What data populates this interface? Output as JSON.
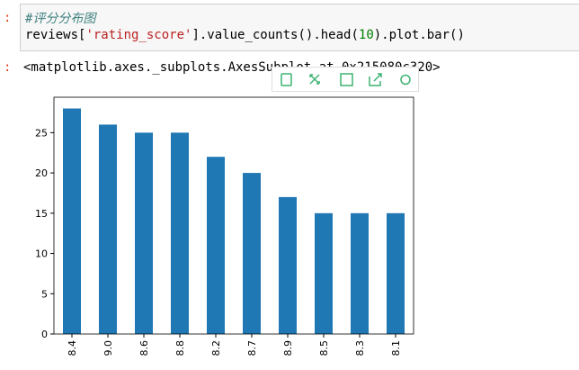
{
  "prompt": ":",
  "cell": {
    "comment": "#评分分布图",
    "code": [
      "reviews[",
      "'rating_score'",
      "].value_counts().head(",
      "10",
      ").plot.bar()"
    ]
  },
  "output": "<matplotlib.axes._subplots.AxesSubplot at 0x215080c320>",
  "chart_data": {
    "type": "bar",
    "categories": [
      "8.4",
      "9.0",
      "8.6",
      "8.8",
      "8.2",
      "8.7",
      "8.9",
      "8.5",
      "8.3",
      "8.1"
    ],
    "values": [
      28,
      26,
      25,
      25,
      22,
      20,
      17,
      15,
      15,
      15
    ],
    "color": "#1f77b4",
    "ylim": [
      0,
      29.4
    ],
    "yticks": [
      0,
      5,
      10,
      15,
      20,
      25
    ]
  }
}
